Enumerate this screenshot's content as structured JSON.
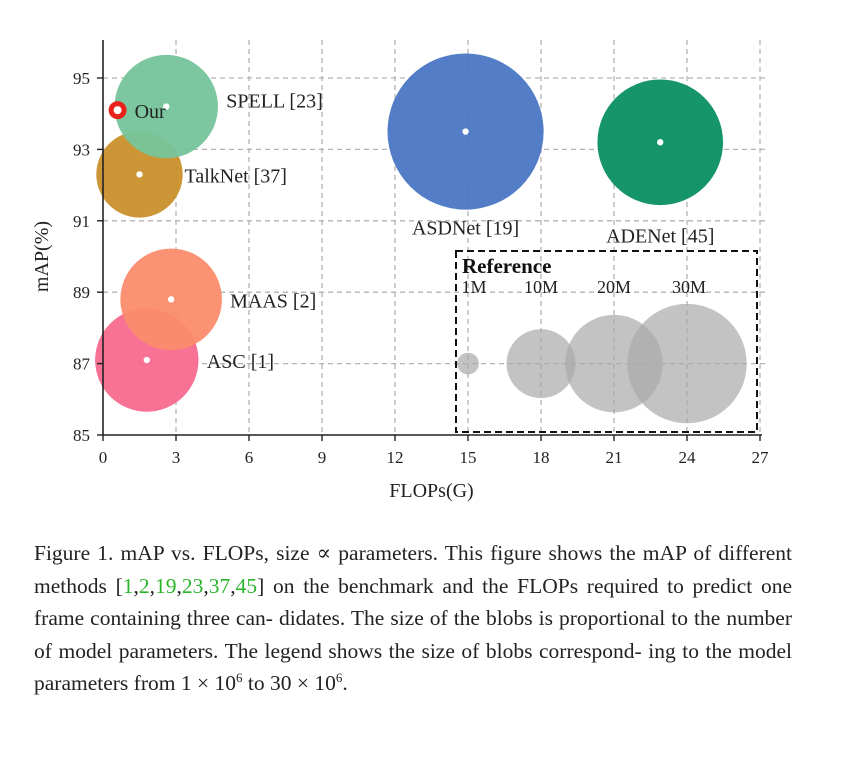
{
  "chart_data": {
    "type": "scatter",
    "variant": "bubble",
    "xlabel": "FLOPs(G)",
    "ylabel": "mAP(%)",
    "xlim": [
      0,
      27
    ],
    "ylim": [
      85,
      96
    ],
    "xticks": [
      0,
      3,
      6,
      9,
      12,
      15,
      18,
      21,
      24,
      27
    ],
    "yticks": [
      85,
      87,
      89,
      91,
      93,
      95
    ],
    "grid": true,
    "size_encoding": "bubble area proportional to model parameters",
    "points": [
      {
        "name": "Our",
        "label": "Our",
        "x": 0.6,
        "y": 94.1,
        "params_M": 0.2,
        "color": "#e8221b",
        "marker": "ring"
      },
      {
        "name": "SPELL",
        "label": "SPELL [23]",
        "x": 2.6,
        "y": 94.2,
        "params_M": 22.5,
        "color": "#76c49b"
      },
      {
        "name": "TalkNet",
        "label": "TalkNet [37]",
        "x": 1.5,
        "y": 92.3,
        "params_M": 15.7,
        "color": "#c98f2a"
      },
      {
        "name": "ASDNet",
        "label": "ASDNet [19]",
        "x": 14.9,
        "y": 93.5,
        "params_M": 51.3,
        "color": "#4a76c4"
      },
      {
        "name": "ADENet",
        "label": "ADENet [45]",
        "x": 22.9,
        "y": 93.2,
        "params_M": 33.2,
        "color": "#0a8f62"
      },
      {
        "name": "MAAS",
        "label": "MAAS [2]",
        "x": 2.8,
        "y": 88.8,
        "params_M": 21.7,
        "color": "#fb8c6c"
      },
      {
        "name": "ASC",
        "label": "ASC [1]",
        "x": 1.8,
        "y": 87.1,
        "params_M": 22.5,
        "color": "#f76a8f"
      }
    ],
    "reference": {
      "title": "Reference",
      "items": [
        {
          "label": "1M",
          "x": 15,
          "y": 87,
          "params_M": 1
        },
        {
          "label": "10M",
          "x": 18,
          "y": 87,
          "params_M": 10
        },
        {
          "label": "20M",
          "x": 21,
          "y": 87,
          "params_M": 20
        },
        {
          "label": "30M",
          "x": 24,
          "y": 87,
          "params_M": 30
        }
      ],
      "color": "#a9a9a9"
    }
  },
  "caption": {
    "line1": "Figure 1. mAP vs. FLOPs, size ∝ parameters. This figure shows",
    "line2_pre": "the mAP of different methods [",
    "cites": [
      "1",
      "2",
      "19",
      "23",
      "37",
      "45"
    ],
    "line2_post": "] on the benchmark",
    "line3": "and the FLOPs required to predict one frame containing three can-",
    "line4": "didates.  The size of the blobs is proportional to the number of",
    "line5": "model parameters. The legend shows the size of blobs correspond-",
    "line6_pre": "ing to the model parameters from 1 × 10",
    "sup1": "6",
    "line6_mid": " to 30 × 10",
    "sup2": "6",
    "line6_post": "."
  }
}
